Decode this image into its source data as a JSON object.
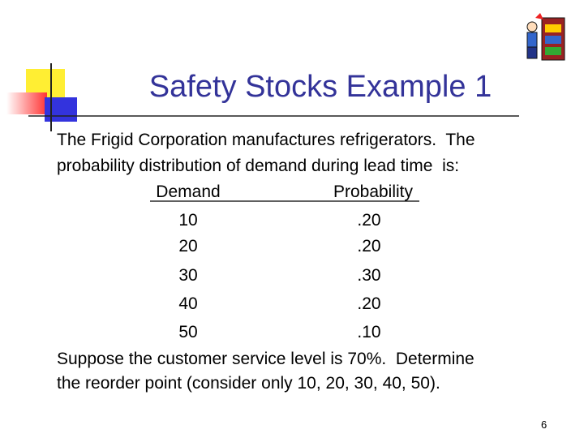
{
  "header": {
    "title": "Safety Stocks Example 1"
  },
  "intro": {
    "lines": [
      "The Frigid Corporation manufactures refrigerators.  The",
      "probability distribution of demand during lead time  is:"
    ]
  },
  "table": {
    "columns": [
      "Demand",
      "Probability"
    ],
    "rows": [
      [
        "10",
        ".20"
      ],
      [
        "20",
        ".20"
      ],
      [
        "30",
        ".30"
      ],
      [
        "40",
        ".20"
      ],
      [
        "50",
        ".10"
      ]
    ]
  },
  "question": {
    "lines": [
      "Suppose the customer service level is 70%.  Determine",
      "the reorder point (consider only 10, 20, 30, 40, 50)."
    ]
  },
  "footer": {
    "page_number": "6"
  }
}
